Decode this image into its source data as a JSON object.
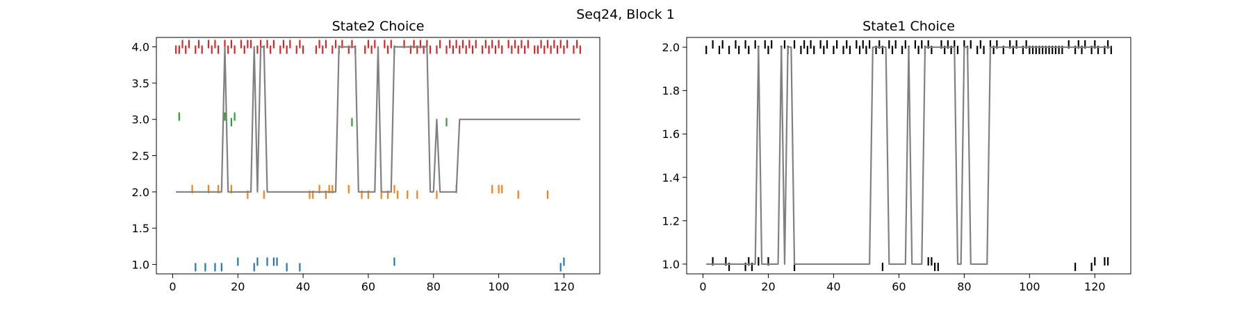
{
  "figure": {
    "suptitle": "Seq24, Block 1"
  },
  "chart_data": [
    {
      "type": "line",
      "title": "State2 Choice",
      "xlabel": "",
      "ylabel": "",
      "xlim": [
        -5,
        131
      ],
      "ylim": [
        0.87,
        4.13
      ],
      "xticks": [
        0,
        20,
        40,
        60,
        80,
        100,
        120
      ],
      "yticks": [
        1.0,
        1.5,
        2.0,
        2.5,
        3.0,
        3.5,
        4.0
      ],
      "ytick_decimals": 1,
      "grid": false,
      "line": {
        "color": "#808080",
        "x": [
          1,
          15,
          16,
          17,
          18,
          19,
          20,
          21,
          22,
          23,
          24,
          25,
          26,
          27,
          28,
          29,
          30,
          50,
          51,
          52,
          53,
          54,
          55,
          56,
          57,
          58,
          59,
          60,
          61,
          62,
          63,
          64,
          65,
          66,
          67,
          68,
          69,
          70,
          71,
          72,
          73,
          74,
          75,
          76,
          77,
          78,
          79,
          80,
          81,
          82,
          83,
          84,
          85,
          86,
          87,
          88,
          89,
          125
        ],
        "y": [
          2,
          2,
          4,
          2,
          2,
          2,
          2,
          2,
          2,
          2,
          2,
          4,
          2,
          4,
          4,
          2,
          2,
          2,
          4,
          4,
          4,
          4,
          4,
          4,
          2,
          2,
          2,
          2,
          2,
          2,
          4,
          2,
          2,
          2,
          2,
          4,
          4,
          4,
          4,
          4,
          4,
          4,
          4,
          4,
          4,
          4,
          2,
          2,
          3,
          2,
          2,
          2,
          2,
          2,
          2,
          3,
          3,
          3
        ]
      },
      "ticks": [
        {
          "name": "red",
          "color": "#d62728",
          "value": 4,
          "x": [
            1,
            2,
            3,
            4,
            5,
            7,
            8,
            9,
            11,
            12,
            13,
            14,
            16,
            17,
            18,
            19,
            21,
            22,
            23,
            24,
            26,
            27,
            28,
            29,
            30,
            31,
            33,
            34,
            35,
            36,
            38,
            39,
            40,
            44,
            45,
            46,
            47,
            49,
            50,
            51,
            52,
            54,
            55,
            56,
            59,
            60,
            61,
            62,
            65,
            66,
            67,
            68,
            71,
            73,
            74,
            75,
            76,
            77,
            78,
            79,
            81,
            82,
            84,
            85,
            86,
            87,
            88,
            89,
            90,
            91,
            92,
            93,
            95,
            96,
            97,
            98,
            99,
            100,
            101,
            103,
            104,
            105,
            106,
            107,
            108,
            109,
            111,
            112,
            113,
            114,
            115,
            116,
            117,
            118,
            119,
            120,
            121,
            123,
            124,
            125
          ],
          "side": [
            "d",
            "d",
            "u",
            "d",
            "u",
            "d",
            "u",
            "d",
            "u",
            "d",
            "u",
            "d",
            "u",
            "d",
            "u",
            "d",
            "u",
            "d",
            "u",
            "u",
            "d",
            "u",
            "d",
            "u",
            "d",
            "u",
            "d",
            "u",
            "d",
            "u",
            "d",
            "u",
            "d",
            "d",
            "u",
            "d",
            "u",
            "d",
            "u",
            "d",
            "u",
            "d",
            "u",
            "d",
            "d",
            "u",
            "d",
            "u",
            "u",
            "d",
            "u",
            "d",
            "u",
            "d",
            "u",
            "d",
            "u",
            "d",
            "u",
            "d",
            "d",
            "u",
            "d",
            "u",
            "d",
            "u",
            "d",
            "u",
            "d",
            "u",
            "d",
            "u",
            "d",
            "u",
            "d",
            "u",
            "d",
            "u",
            "d",
            "u",
            "d",
            "u",
            "d",
            "u",
            "d",
            "u",
            "d",
            "d",
            "u",
            "d",
            "u",
            "d",
            "u",
            "d",
            "u",
            "d",
            "u",
            "d",
            "u",
            "d"
          ]
        },
        {
          "name": "green",
          "color": "#2ca02c",
          "value": 3,
          "x": [
            2,
            16,
            18,
            19,
            55,
            84
          ],
          "side": [
            "u",
            "u",
            "d",
            "u",
            "d",
            "d"
          ]
        },
        {
          "name": "orange",
          "color": "#ff7f0e",
          "value": 2,
          "x": [
            6,
            11,
            14,
            18,
            23,
            28,
            42,
            43,
            45,
            47,
            48,
            49,
            54,
            58,
            60,
            64,
            66,
            68,
            69,
            72,
            75,
            81,
            87,
            98,
            100,
            101,
            106,
            115
          ],
          "side": [
            "u",
            "u",
            "u",
            "u",
            "d",
            "d",
            "d",
            "d",
            "u",
            "d",
            "u",
            "u",
            "u",
            "d",
            "d",
            "d",
            "d",
            "u",
            "d",
            "d",
            "d",
            "d",
            "u",
            "u",
            "u",
            "u",
            "d",
            "d"
          ]
        },
        {
          "name": "blue",
          "color": "#1f77b4",
          "value": 1,
          "x": [
            7,
            10,
            13,
            15,
            20,
            25,
            26,
            29,
            31,
            32,
            35,
            39,
            68,
            119,
            120
          ],
          "side": [
            "d",
            "d",
            "d",
            "d",
            "u",
            "d",
            "u",
            "u",
            "u",
            "u",
            "d",
            "d",
            "u",
            "d",
            "u"
          ]
        }
      ]
    },
    {
      "type": "line",
      "title": "State1 Choice",
      "xlabel": "",
      "ylabel": "",
      "xlim": [
        -5,
        131
      ],
      "ylim": [
        0.955,
        2.045
      ],
      "xticks": [
        0,
        20,
        40,
        60,
        80,
        100,
        120
      ],
      "yticks": [
        1.0,
        1.2,
        1.4,
        1.6,
        1.8,
        2.0
      ],
      "ytick_decimals": 1,
      "grid": false,
      "line": {
        "color": "#808080",
        "x": [
          1,
          16,
          17,
          18,
          19,
          20,
          21,
          22,
          23,
          24,
          25,
          26,
          27,
          28,
          29,
          30,
          51,
          52,
          53,
          54,
          55,
          56,
          57,
          58,
          59,
          60,
          61,
          62,
          63,
          64,
          65,
          66,
          67,
          68,
          69,
          77,
          78,
          79,
          80,
          81,
          82,
          83,
          84,
          85,
          86,
          87,
          88,
          89,
          125
        ],
        "y": [
          1,
          1,
          2,
          1,
          1,
          1,
          1,
          1,
          1,
          2,
          1,
          2,
          2,
          1,
          1,
          1,
          1,
          2,
          2,
          2,
          2,
          2,
          1,
          1,
          1,
          1,
          1,
          1,
          2,
          1,
          1,
          1,
          1,
          2,
          2,
          2,
          1,
          1,
          2,
          2,
          1,
          1,
          1,
          1,
          1,
          1,
          2,
          2,
          2
        ]
      },
      "ticks": [
        {
          "name": "black-top",
          "color": "#000000",
          "value": 2,
          "x": [
            1,
            3,
            5,
            6,
            8,
            10,
            11,
            13,
            14,
            16,
            17,
            19,
            20,
            21,
            24,
            25,
            26,
            28,
            30,
            31,
            32,
            33,
            34,
            36,
            37,
            38,
            40,
            41,
            43,
            44,
            45,
            47,
            48,
            49,
            50,
            51,
            53,
            54,
            55,
            57,
            58,
            59,
            61,
            62,
            63,
            65,
            66,
            67,
            68,
            69,
            70,
            73,
            74,
            75,
            76,
            77,
            78,
            80,
            81,
            82,
            84,
            85,
            86,
            88,
            89,
            90,
            92,
            94,
            95,
            96,
            98,
            99,
            100,
            101,
            102,
            103,
            104,
            105,
            106,
            107,
            108,
            109,
            110,
            112,
            114,
            115,
            116,
            117,
            119,
            120,
            121,
            123,
            124,
            125
          ],
          "side": [
            "d",
            "u",
            "d",
            "u",
            "d",
            "u",
            "d",
            "u",
            "d",
            "u",
            "d",
            "u",
            "d",
            "u",
            "d",
            "u",
            "d",
            "u",
            "d",
            "u",
            "d",
            "u",
            "d",
            "u",
            "d",
            "u",
            "d",
            "u",
            "d",
            "u",
            "d",
            "u",
            "d",
            "u",
            "d",
            "u",
            "d",
            "u",
            "d",
            "u",
            "d",
            "u",
            "d",
            "u",
            "d",
            "u",
            "d",
            "u",
            "d",
            "u",
            "d",
            "u",
            "d",
            "u",
            "d",
            "u",
            "d",
            "u",
            "d",
            "u",
            "d",
            "u",
            "d",
            "u",
            "d",
            "u",
            "d",
            "u",
            "d",
            "u",
            "d",
            "u",
            "d",
            "d",
            "d",
            "d",
            "d",
            "d",
            "d",
            "d",
            "d",
            "d",
            "d",
            "u",
            "d",
            "u",
            "d",
            "u",
            "d",
            "u",
            "d",
            "d",
            "u",
            "d"
          ]
        },
        {
          "name": "black-bottom",
          "color": "#000000",
          "value": 1,
          "x": [
            3,
            7,
            8,
            13,
            14,
            15,
            17,
            20,
            28,
            55,
            69,
            70,
            71,
            72,
            114,
            119,
            120,
            123,
            124
          ],
          "side": [
            "u",
            "u",
            "d",
            "d",
            "u",
            "d",
            "u",
            "u",
            "d",
            "d",
            "u",
            "u",
            "d",
            "d",
            "d",
            "d",
            "u",
            "u",
            "u"
          ]
        }
      ]
    }
  ]
}
